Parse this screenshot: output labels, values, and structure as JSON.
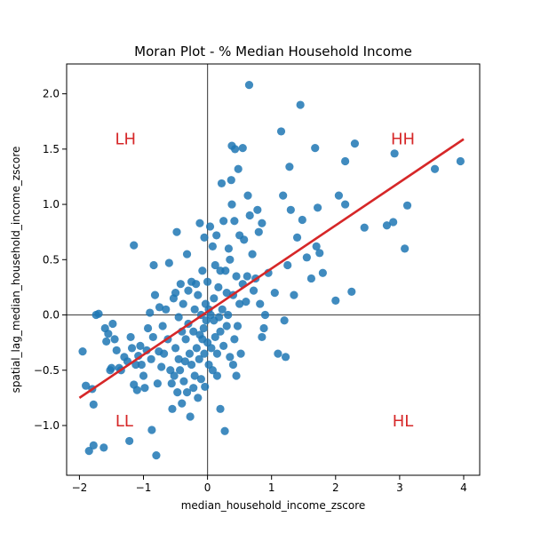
{
  "chart_data": {
    "type": "scatter",
    "title": "Moran Plot - % Median Household Income",
    "xlabel": "median_household_income_zscore",
    "ylabel": "spatial_lag_median_household_income_zscore",
    "xlim": [
      -2.2,
      4.25
    ],
    "ylim": [
      -1.45,
      2.27
    ],
    "xticks": [
      -2,
      -1,
      0,
      1,
      2,
      3,
      4
    ],
    "yticks": [
      -1.0,
      -0.5,
      0.0,
      0.5,
      1.0,
      1.5,
      2.0
    ],
    "xtick_labels": [
      "−2",
      "−1",
      "0",
      "1",
      "2",
      "3",
      "4"
    ],
    "ytick_labels": [
      "−1.0",
      "−0.5",
      "0.0",
      "0.5",
      "1.0",
      "1.5",
      "2.0"
    ],
    "grid": false,
    "colors": {
      "points": "#1f77b4",
      "fit_line": "#d62728",
      "quadrant_labels": "#d62728",
      "axis_lines": "#555555"
    },
    "quadrant_labels": [
      {
        "text": "LH",
        "x": -1.28,
        "y": 1.6
      },
      {
        "text": "HH",
        "x": 3.05,
        "y": 1.6
      },
      {
        "text": "LL",
        "x": -1.3,
        "y": -0.95
      },
      {
        "text": "HL",
        "x": 3.05,
        "y": -0.95
      }
    ],
    "fit_line": {
      "x": [
        -2.0,
        4.0
      ],
      "y": [
        -0.75,
        1.59
      ]
    },
    "points": [
      [
        -1.95,
        -0.33
      ],
      [
        -1.9,
        -0.64
      ],
      [
        -1.85,
        -1.23
      ],
      [
        -1.8,
        -0.67
      ],
      [
        -1.78,
        -0.81
      ],
      [
        -1.78,
        -1.18
      ],
      [
        -1.74,
        0.0
      ],
      [
        -1.7,
        0.01
      ],
      [
        -1.62,
        -1.2
      ],
      [
        -1.6,
        -0.12
      ],
      [
        -1.58,
        -0.24
      ],
      [
        -1.55,
        -0.17
      ],
      [
        -1.52,
        -0.5
      ],
      [
        -1.5,
        -0.48
      ],
      [
        -1.48,
        -0.08
      ],
      [
        -1.45,
        -0.22
      ],
      [
        -1.42,
        -0.32
      ],
      [
        -1.38,
        -0.48
      ],
      [
        -1.35,
        -0.5
      ],
      [
        -1.3,
        -0.38
      ],
      [
        -1.25,
        -0.42
      ],
      [
        -1.22,
        -1.14
      ],
      [
        -1.2,
        -0.2
      ],
      [
        -1.18,
        -0.3
      ],
      [
        -1.15,
        0.63
      ],
      [
        -1.15,
        -0.63
      ],
      [
        -1.12,
        -0.45
      ],
      [
        -1.1,
        -0.68
      ],
      [
        -1.08,
        -0.37
      ],
      [
        -1.05,
        -0.28
      ],
      [
        -1.03,
        -0.45
      ],
      [
        -1.0,
        -0.55
      ],
      [
        -0.98,
        -0.66
      ],
      [
        -0.95,
        -0.32
      ],
      [
        -0.93,
        -0.12
      ],
      [
        -0.9,
        0.02
      ],
      [
        -0.88,
        -0.4
      ],
      [
        -0.87,
        -1.04
      ],
      [
        -0.85,
        -0.2
      ],
      [
        -0.84,
        0.45
      ],
      [
        -0.82,
        0.18
      ],
      [
        -0.8,
        -1.27
      ],
      [
        -0.78,
        -0.62
      ],
      [
        -0.76,
        -0.33
      ],
      [
        -0.75,
        0.07
      ],
      [
        -0.72,
        -0.47
      ],
      [
        -0.7,
        -0.1
      ],
      [
        -0.68,
        -0.35
      ],
      [
        -0.65,
        0.05
      ],
      [
        -0.62,
        -0.22
      ],
      [
        -0.6,
        0.47
      ],
      [
        -0.58,
        -0.5
      ],
      [
        -0.56,
        -0.62
      ],
      [
        -0.55,
        -0.85
      ],
      [
        -0.53,
        0.15
      ],
      [
        -0.52,
        -0.55
      ],
      [
        -0.5,
        0.2
      ],
      [
        -0.5,
        -0.3
      ],
      [
        -0.48,
        0.75
      ],
      [
        -0.47,
        -0.7
      ],
      [
        -0.45,
        -0.02
      ],
      [
        -0.45,
        -0.4
      ],
      [
        -0.43,
        -0.5
      ],
      [
        -0.42,
        0.28
      ],
      [
        -0.4,
        -0.15
      ],
      [
        -0.4,
        -0.8
      ],
      [
        -0.38,
        0.1
      ],
      [
        -0.37,
        -0.6
      ],
      [
        -0.35,
        -0.42
      ],
      [
        -0.34,
        -0.22
      ],
      [
        -0.32,
        -0.7
      ],
      [
        -0.32,
        0.55
      ],
      [
        -0.3,
        0.22
      ],
      [
        -0.3,
        -0.08
      ],
      [
        -0.28,
        -0.35
      ],
      [
        -0.27,
        -0.92
      ],
      [
        -0.25,
        0.3
      ],
      [
        -0.25,
        -0.45
      ],
      [
        -0.22,
        -0.15
      ],
      [
        -0.22,
        -0.66
      ],
      [
        -0.2,
        0.05
      ],
      [
        -0.2,
        -0.55
      ],
      [
        -0.18,
        0.28
      ],
      [
        -0.17,
        -0.3
      ],
      [
        -0.15,
        -0.75
      ],
      [
        -0.15,
        0.18
      ],
      [
        -0.13,
        -0.4
      ],
      [
        -0.12,
        0.83
      ],
      [
        -0.12,
        -0.18
      ],
      [
        -0.1,
        -0.58
      ],
      [
        -0.1,
        0.0
      ],
      [
        -0.08,
        0.4
      ],
      [
        -0.08,
        -0.22
      ],
      [
        -0.06,
        -0.12
      ],
      [
        -0.05,
        0.7
      ],
      [
        -0.05,
        -0.35
      ],
      [
        -0.04,
        -0.65
      ],
      [
        -0.03,
        0.1
      ],
      [
        -0.02,
        -0.05
      ],
      [
        0.0,
        0.3
      ],
      [
        0.0,
        -0.25
      ],
      [
        0.02,
        0.05
      ],
      [
        0.02,
        -0.45
      ],
      [
        0.04,
        0.8
      ],
      [
        0.05,
        0.0
      ],
      [
        0.06,
        -0.3
      ],
      [
        0.08,
        0.62
      ],
      [
        0.08,
        -0.5
      ],
      [
        0.1,
        0.15
      ],
      [
        0.1,
        -0.05
      ],
      [
        0.12,
        0.45
      ],
      [
        0.12,
        -0.2
      ],
      [
        0.14,
        0.72
      ],
      [
        0.15,
        -0.35
      ],
      [
        0.15,
        -0.55
      ],
      [
        0.17,
        0.25
      ],
      [
        0.18,
        -0.02
      ],
      [
        0.2,
        0.4
      ],
      [
        0.2,
        -0.15
      ],
      [
        0.2,
        -0.85
      ],
      [
        0.22,
        1.19
      ],
      [
        0.23,
        0.05
      ],
      [
        0.25,
        -0.28
      ],
      [
        0.25,
        0.85
      ],
      [
        0.27,
        -1.05
      ],
      [
        0.28,
        0.4
      ],
      [
        0.3,
        0.2
      ],
      [
        0.3,
        -0.1
      ],
      [
        0.32,
        0.0
      ],
      [
        0.33,
        0.6
      ],
      [
        0.35,
        0.5
      ],
      [
        0.35,
        -0.38
      ],
      [
        0.37,
        1.22
      ],
      [
        0.38,
        1.53
      ],
      [
        0.38,
        1.0
      ],
      [
        0.4,
        -0.45
      ],
      [
        0.4,
        0.18
      ],
      [
        0.42,
        0.85
      ],
      [
        0.42,
        -0.22
      ],
      [
        0.43,
        1.5
      ],
      [
        0.45,
        -0.55
      ],
      [
        0.45,
        0.35
      ],
      [
        0.47,
        -0.1
      ],
      [
        0.48,
        1.32
      ],
      [
        0.5,
        0.72
      ],
      [
        0.5,
        0.1
      ],
      [
        0.52,
        -0.35
      ],
      [
        0.55,
        1.51
      ],
      [
        0.55,
        0.28
      ],
      [
        0.57,
        0.68
      ],
      [
        0.6,
        0.12
      ],
      [
        0.62,
        0.35
      ],
      [
        0.63,
        1.08
      ],
      [
        0.65,
        2.08
      ],
      [
        0.66,
        0.9
      ],
      [
        0.7,
        0.55
      ],
      [
        0.72,
        0.22
      ],
      [
        0.75,
        0.33
      ],
      [
        0.78,
        0.95
      ],
      [
        0.8,
        0.75
      ],
      [
        0.82,
        0.1
      ],
      [
        0.85,
        0.83
      ],
      [
        0.85,
        -0.2
      ],
      [
        0.88,
        -0.12
      ],
      [
        0.9,
        0.0
      ],
      [
        0.95,
        0.38
      ],
      [
        1.05,
        0.2
      ],
      [
        1.1,
        -0.35
      ],
      [
        1.15,
        1.66
      ],
      [
        1.18,
        1.08
      ],
      [
        1.2,
        -0.05
      ],
      [
        1.22,
        -0.38
      ],
      [
        1.25,
        0.45
      ],
      [
        1.28,
        1.34
      ],
      [
        1.3,
        0.95
      ],
      [
        1.35,
        0.18
      ],
      [
        1.4,
        0.7
      ],
      [
        1.45,
        1.9
      ],
      [
        1.48,
        0.86
      ],
      [
        1.55,
        0.52
      ],
      [
        1.62,
        0.33
      ],
      [
        1.68,
        1.51
      ],
      [
        1.7,
        0.62
      ],
      [
        1.72,
        0.97
      ],
      [
        1.75,
        0.56
      ],
      [
        1.8,
        0.38
      ],
      [
        2.0,
        0.13
      ],
      [
        2.05,
        1.08
      ],
      [
        2.15,
        1.0
      ],
      [
        2.15,
        1.39
      ],
      [
        2.25,
        0.21
      ],
      [
        2.3,
        1.55
      ],
      [
        2.45,
        0.79
      ],
      [
        2.8,
        0.81
      ],
      [
        2.9,
        0.84
      ],
      [
        2.92,
        1.46
      ],
      [
        3.08,
        0.6
      ],
      [
        3.12,
        0.99
      ],
      [
        3.55,
        1.32
      ],
      [
        3.95,
        1.39
      ]
    ]
  }
}
